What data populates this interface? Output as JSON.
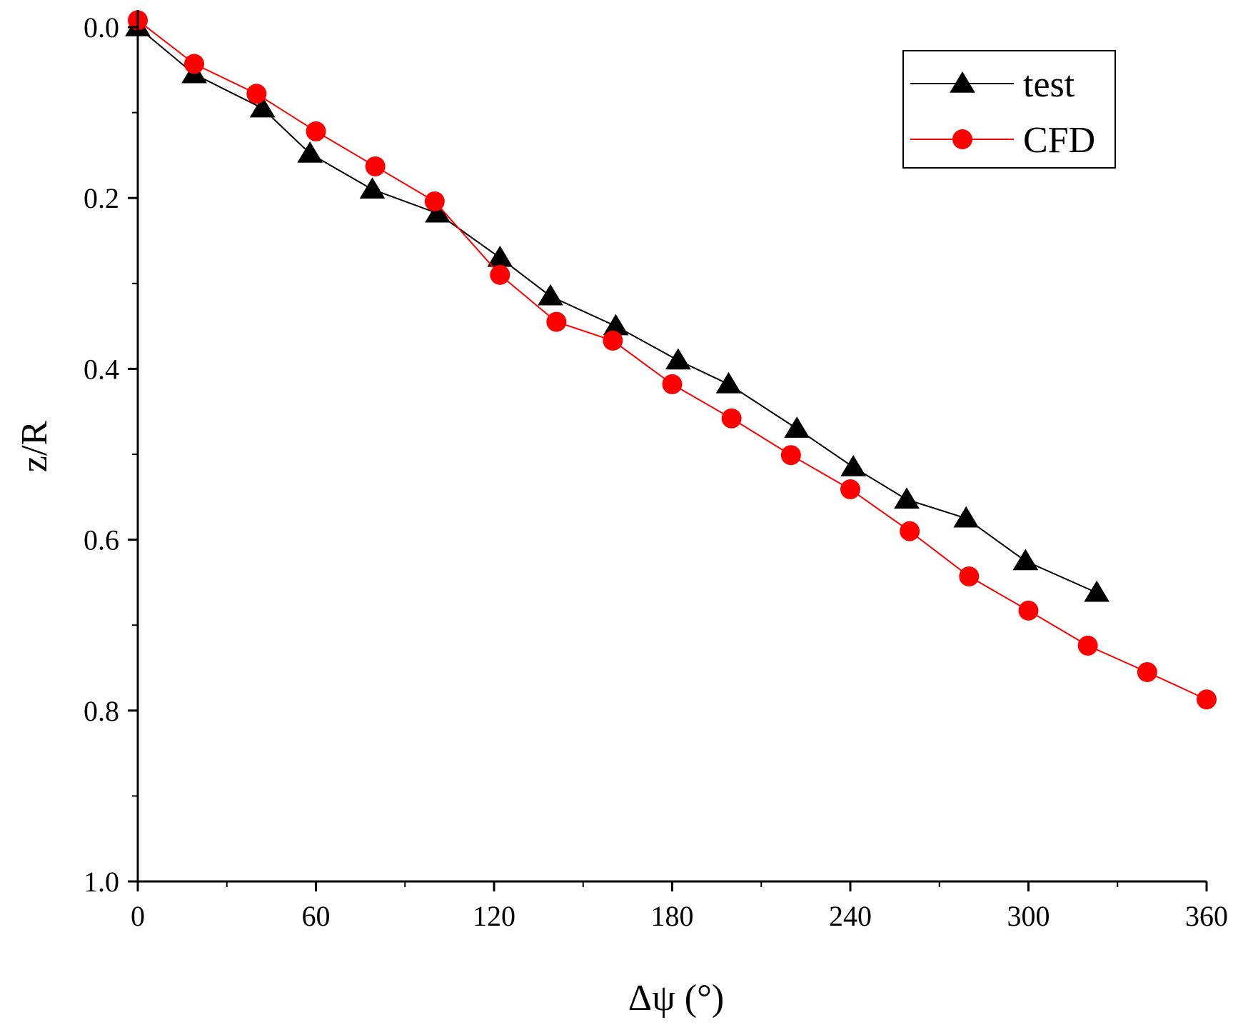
{
  "chart_data": {
    "type": "line",
    "title": "",
    "xlabel": "Δψ (°)",
    "ylabel": "z/R",
    "xlim": [
      0,
      360
    ],
    "ylim": [
      0.0,
      1.0
    ],
    "y_inverted": true,
    "xticks": [
      0,
      60,
      120,
      180,
      240,
      300,
      360
    ],
    "xtick_labels": [
      "0",
      "60",
      "120",
      "180",
      "240",
      "300",
      "360"
    ],
    "yticks": [
      0.0,
      0.2,
      0.4,
      0.6,
      0.8,
      1.0
    ],
    "ytick_labels": [
      "0.0",
      "0.2",
      "0.4",
      "0.6",
      "0.8",
      "1.0"
    ],
    "grid": false,
    "legend_position": "top-right",
    "series": [
      {
        "name": "test",
        "color": "#000000",
        "marker": "triangle",
        "x": [
          0,
          19,
          42,
          58,
          79,
          101,
          122,
          139,
          161,
          182,
          199,
          222,
          241,
          259,
          279,
          299,
          323
        ],
        "y": [
          0.0,
          0.055,
          0.095,
          0.148,
          0.19,
          0.218,
          0.27,
          0.315,
          0.35,
          0.39,
          0.418,
          0.47,
          0.515,
          0.553,
          0.575,
          0.625,
          0.662
        ]
      },
      {
        "name": "CFD",
        "color": "#ff0000",
        "marker": "circle",
        "x": [
          0,
          19,
          40,
          60,
          80,
          100,
          122,
          141,
          160,
          180,
          200,
          220,
          240,
          260,
          280,
          300,
          320,
          340,
          360
        ],
        "y": [
          -0.008,
          0.043,
          0.078,
          0.122,
          0.163,
          0.204,
          0.29,
          0.345,
          0.367,
          0.418,
          0.458,
          0.501,
          0.541,
          0.59,
          0.643,
          0.683,
          0.724,
          0.755,
          0.787
        ]
      }
    ]
  }
}
